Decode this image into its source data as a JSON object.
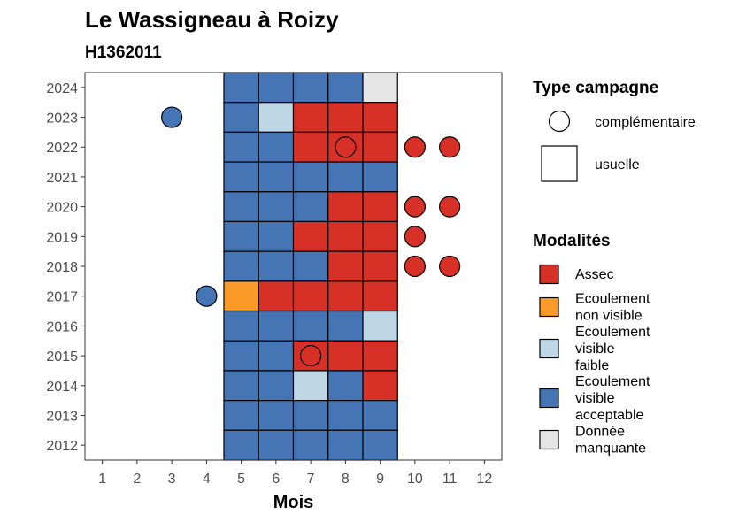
{
  "chart_data": {
    "type": "heatmap",
    "title": "Le Wassigneau à Roizy",
    "subtitle": "H1362011",
    "xlabel": "Mois",
    "ylabel": "",
    "x_ticks": [
      "1",
      "2",
      "3",
      "4",
      "5",
      "6",
      "7",
      "8",
      "9",
      "10",
      "11",
      "12"
    ],
    "y_ticks": [
      "2012",
      "2013",
      "2014",
      "2015",
      "2016",
      "2017",
      "2018",
      "2019",
      "2020",
      "2021",
      "2022",
      "2023",
      "2024"
    ],
    "xlim": [
      0.5,
      12.5
    ],
    "ylim": [
      2011.5,
      2024.5
    ],
    "grid": false,
    "legend_position": "right",
    "modalites": {
      "title": "Modalités",
      "items": [
        {
          "key": "A",
          "label_lines": [
            "Assec"
          ],
          "color": "#d73027"
        },
        {
          "key": "NV",
          "label_lines": [
            "Ecoulement",
            "non visible"
          ],
          "color": "#fb9a29"
        },
        {
          "key": "VF",
          "label_lines": [
            "Ecoulement",
            "visible",
            "faible"
          ],
          "color": "#bdd7e7"
        },
        {
          "key": "VA",
          "label_lines": [
            "Ecoulement",
            "visible",
            "acceptable"
          ],
          "color": "#4575b4"
        },
        {
          "key": "DM",
          "label_lines": [
            "Donnée",
            "manquante"
          ],
          "color": "#e5e5e5"
        }
      ]
    },
    "type_campagne": {
      "title": "Type campagne",
      "items": [
        {
          "key": "complementaire",
          "label": "complémentaire",
          "shape": "circle"
        },
        {
          "key": "usuelle",
          "label": "usuelle",
          "shape": "square"
        }
      ]
    },
    "usuelle": [
      {
        "year": 2024,
        "months": [
          5,
          6,
          7,
          8,
          9
        ],
        "values": [
          "VA",
          "VA",
          "VA",
          "VA",
          "DM"
        ]
      },
      {
        "year": 2023,
        "months": [
          5,
          6,
          7,
          8,
          9
        ],
        "values": [
          "VA",
          "VF",
          "A",
          "A",
          "A"
        ]
      },
      {
        "year": 2022,
        "months": [
          5,
          6,
          7,
          8,
          9
        ],
        "values": [
          "VA",
          "VA",
          "A",
          "A",
          "A"
        ]
      },
      {
        "year": 2021,
        "months": [
          5,
          6,
          7,
          8,
          9
        ],
        "values": [
          "VA",
          "VA",
          "VA",
          "VA",
          "VA"
        ]
      },
      {
        "year": 2020,
        "months": [
          5,
          6,
          7,
          8,
          9
        ],
        "values": [
          "VA",
          "VA",
          "VA",
          "A",
          "A"
        ]
      },
      {
        "year": 2019,
        "months": [
          5,
          6,
          7,
          8,
          9
        ],
        "values": [
          "VA",
          "VA",
          "A",
          "A",
          "A"
        ]
      },
      {
        "year": 2018,
        "months": [
          5,
          6,
          7,
          8,
          9
        ],
        "values": [
          "VA",
          "VA",
          "VA",
          "A",
          "A"
        ]
      },
      {
        "year": 2017,
        "months": [
          5,
          6,
          7,
          8,
          9
        ],
        "values": [
          "NV",
          "A",
          "A",
          "A",
          "A"
        ]
      },
      {
        "year": 2016,
        "months": [
          5,
          6,
          7,
          8,
          9
        ],
        "values": [
          "VA",
          "VA",
          "VA",
          "VA",
          "VF"
        ]
      },
      {
        "year": 2015,
        "months": [
          5,
          6,
          7,
          8,
          9
        ],
        "values": [
          "VA",
          "VA",
          "A",
          "A",
          "A"
        ]
      },
      {
        "year": 2014,
        "months": [
          5,
          6,
          7,
          8,
          9
        ],
        "values": [
          "VA",
          "VA",
          "VF",
          "VA",
          "A"
        ]
      },
      {
        "year": 2013,
        "months": [
          5,
          6,
          7,
          8,
          9
        ],
        "values": [
          "VA",
          "VA",
          "VA",
          "VA",
          "VA"
        ]
      },
      {
        "year": 2012,
        "months": [
          5,
          6,
          7,
          8,
          9
        ],
        "values": [
          "VA",
          "VA",
          "VA",
          "VA",
          "VA"
        ]
      }
    ],
    "complementaire": [
      {
        "year": 2023,
        "month": 3,
        "value": "VA"
      },
      {
        "year": 2022,
        "month": 8,
        "value": "A"
      },
      {
        "year": 2022,
        "month": 10,
        "value": "A"
      },
      {
        "year": 2022,
        "month": 11,
        "value": "A"
      },
      {
        "year": 2020,
        "month": 10,
        "value": "A"
      },
      {
        "year": 2020,
        "month": 11,
        "value": "A"
      },
      {
        "year": 2019,
        "month": 10,
        "value": "A"
      },
      {
        "year": 2018,
        "month": 10,
        "value": "A"
      },
      {
        "year": 2018,
        "month": 11,
        "value": "A"
      },
      {
        "year": 2017,
        "month": 4,
        "value": "VA"
      },
      {
        "year": 2015,
        "month": 7,
        "value": "A"
      }
    ]
  }
}
